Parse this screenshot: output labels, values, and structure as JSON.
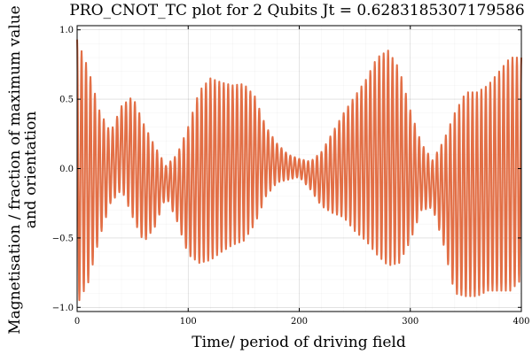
{
  "chart_data": {
    "type": "line",
    "title": "PRO_CNOT_TC plot for 2 Qubits Jt = 0.6283185307179586",
    "xlabel": "Time/ period of driving field",
    "ylabel_lines": [
      "Magnetisation / fraction of maximum value",
      "and orientation"
    ],
    "xlim": [
      0,
      400
    ],
    "ylim": [
      -1.03,
      1.03
    ],
    "x_ticks": [
      0,
      100,
      200,
      300,
      400
    ],
    "x_tick_labels": [
      "0",
      "100",
      "200",
      "300",
      "400"
    ],
    "y_ticks": [
      -1.0,
      -0.5,
      0.0,
      0.5,
      1.0
    ],
    "y_tick_labels": [
      "−1.0",
      "−0.5",
      "0.0",
      "0.5",
      "1.0"
    ],
    "grid": true,
    "legend": "none",
    "series_color": "#e26f46",
    "oscillation_period": 4,
    "envelope": {
      "x": [
        0,
        10,
        20,
        30,
        40,
        50,
        60,
        70,
        80,
        90,
        100,
        110,
        120,
        130,
        140,
        150,
        160,
        170,
        180,
        190,
        200,
        210,
        220,
        230,
        240,
        250,
        260,
        270,
        280,
        290,
        300,
        310,
        320,
        330,
        340,
        350,
        360,
        370,
        380,
        390,
        400
      ],
      "upper": [
        0.93,
        0.72,
        0.42,
        0.26,
        0.45,
        0.52,
        0.32,
        0.16,
        0.02,
        0.1,
        0.3,
        0.56,
        0.65,
        0.62,
        0.6,
        0.61,
        0.52,
        0.3,
        0.18,
        0.1,
        0.07,
        0.05,
        0.12,
        0.26,
        0.4,
        0.52,
        0.64,
        0.8,
        0.85,
        0.72,
        0.42,
        0.18,
        0.06,
        0.2,
        0.4,
        0.55,
        0.55,
        0.6,
        0.7,
        0.8,
        0.8
      ],
      "lower": [
        -0.98,
        -0.82,
        -0.5,
        -0.25,
        -0.15,
        -0.35,
        -0.53,
        -0.42,
        -0.2,
        -0.38,
        -0.62,
        -0.68,
        -0.66,
        -0.6,
        -0.55,
        -0.52,
        -0.4,
        -0.2,
        -0.1,
        -0.08,
        -0.06,
        -0.15,
        -0.27,
        -0.32,
        -0.35,
        -0.45,
        -0.52,
        -0.62,
        -0.7,
        -0.68,
        -0.52,
        -0.3,
        -0.28,
        -0.55,
        -0.9,
        -0.92,
        -0.92,
        -0.88,
        -0.88,
        -0.88,
        -0.8
      ]
    }
  }
}
